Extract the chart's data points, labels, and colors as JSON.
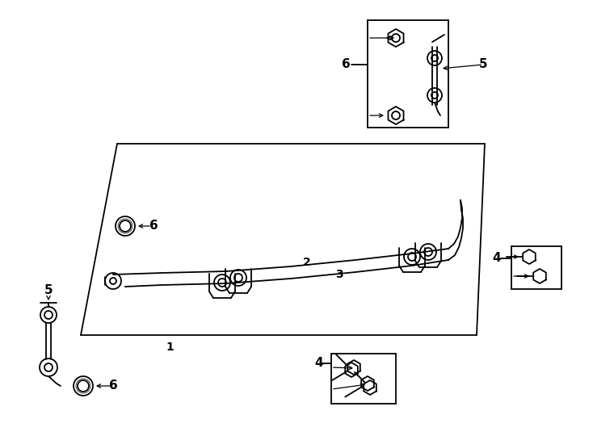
{
  "bg_color": "#ffffff",
  "line_color": "#000000",
  "fig_width": 7.34,
  "fig_height": 5.4,
  "dpi": 100,
  "lw": 1.3
}
